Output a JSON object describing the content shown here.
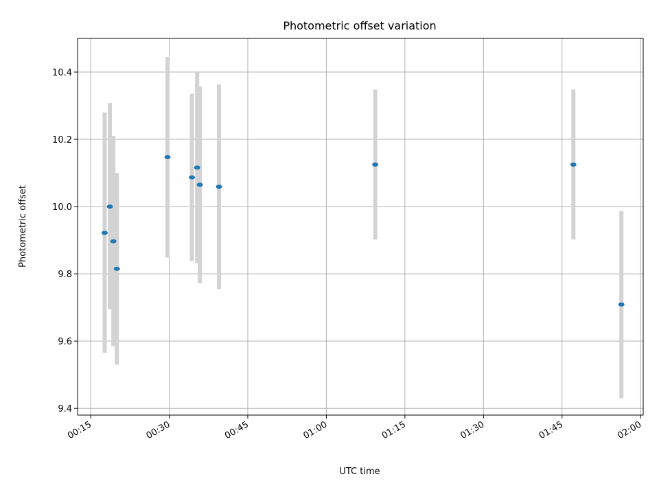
{
  "chart_data": {
    "type": "scatter",
    "title": "Photometric offset variation",
    "xlabel": "UTC time",
    "ylabel": "Photometric offset",
    "x_tick_labels": [
      "00:15",
      "00:30",
      "00:45",
      "01:00",
      "01:15",
      "01:30",
      "01:45",
      "02:00"
    ],
    "y_tick_labels": [
      "9.4",
      "9.6",
      "9.8",
      "10.0",
      "10.2",
      "10.4"
    ],
    "xlim": [
      "00:12:30",
      "02:00:30"
    ],
    "ylim": [
      9.38,
      10.5
    ],
    "grid": true,
    "series": [
      {
        "points": [
          {
            "time": "00:17:40",
            "y": 9.922,
            "err_low": 9.565,
            "err_high": 10.28
          },
          {
            "time": "00:18:40",
            "y": 10.0,
            "err_low": 9.695,
            "err_high": 10.308
          },
          {
            "time": "00:19:20",
            "y": 9.897,
            "err_low": 9.585,
            "err_high": 10.21
          },
          {
            "time": "00:20:00",
            "y": 9.815,
            "err_low": 9.53,
            "err_high": 10.1
          },
          {
            "time": "00:29:40",
            "y": 10.147,
            "err_low": 9.848,
            "err_high": 10.445
          },
          {
            "time": "00:34:20",
            "y": 10.087,
            "err_low": 9.838,
            "err_high": 10.336
          },
          {
            "time": "00:35:20",
            "y": 10.116,
            "err_low": 9.832,
            "err_high": 10.4
          },
          {
            "time": "00:35:50",
            "y": 10.065,
            "err_low": 9.772,
            "err_high": 10.357
          },
          {
            "time": "00:39:30",
            "y": 10.059,
            "err_low": 9.755,
            "err_high": 10.363
          },
          {
            "time": "01:09:20",
            "y": 10.125,
            "err_low": 9.902,
            "err_high": 10.348
          },
          {
            "time": "01:47:10",
            "y": 10.125,
            "err_low": 9.902,
            "err_high": 10.348
          },
          {
            "time": "01:56:20",
            "y": 9.709,
            "err_low": 9.43,
            "err_high": 9.987
          }
        ]
      }
    ],
    "colors": {
      "marker": "#1f77b4",
      "errorbar": "#d3d3d3",
      "grid": "#b0b0b0",
      "axes": "#000000"
    }
  }
}
